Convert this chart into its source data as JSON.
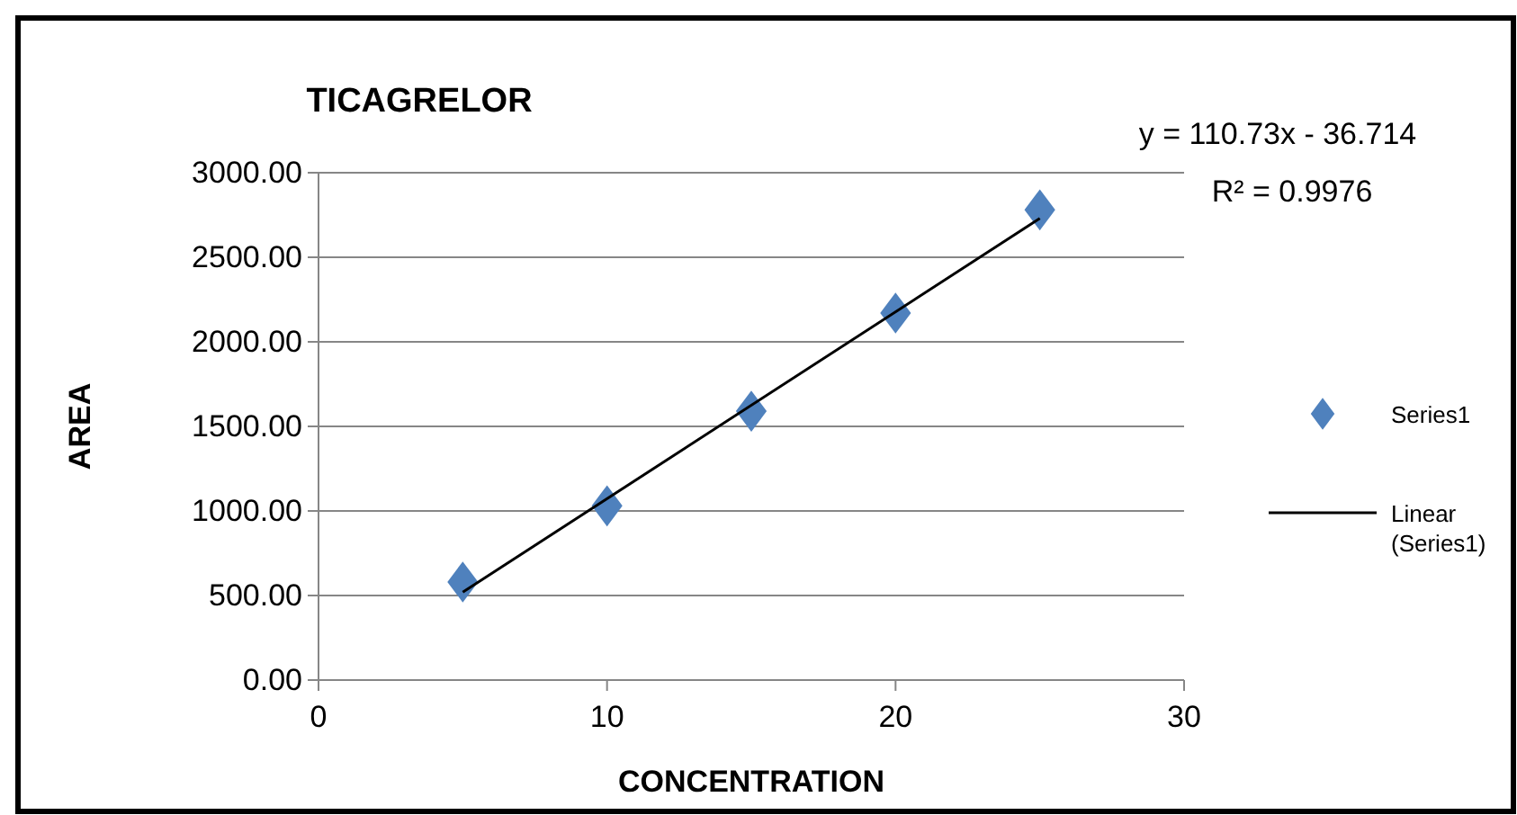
{
  "chart_data": {
    "type": "scatter",
    "title": "TICAGRELOR",
    "xlabel": "CONCENTRATION",
    "ylabel": "AREA",
    "xlim": [
      0,
      30
    ],
    "xticks": [
      0,
      10,
      20,
      30
    ],
    "ylim": [
      0,
      3000
    ],
    "yticks": [
      {
        "value": 0,
        "label": "0.00"
      },
      {
        "value": 500,
        "label": "500.00"
      },
      {
        "value": 1000,
        "label": "1000.00"
      },
      {
        "value": 1500,
        "label": "1500.00"
      },
      {
        "value": 2000,
        "label": "2000.00"
      },
      {
        "value": 2500,
        "label": "2500.00"
      },
      {
        "value": 3000,
        "label": "3000.00"
      }
    ],
    "grid": "y",
    "legend": "right",
    "marker": "diamond",
    "series": [
      {
        "name": "Series1",
        "color": "#4f81bd",
        "x": [
          5,
          10,
          15,
          20,
          25
        ],
        "values": [
          580,
          1030,
          1590,
          2170,
          2780
        ]
      },
      {
        "name": "Linear (Series1)",
        "type": "line",
        "color": "#000000",
        "x": [
          5,
          25
        ],
        "values": [
          520,
          2730
        ],
        "marker": "none",
        "line_style": "solid"
      }
    ],
    "annotations": [
      "y = 110.73x - 36.714",
      "R² = 0.9976"
    ]
  }
}
